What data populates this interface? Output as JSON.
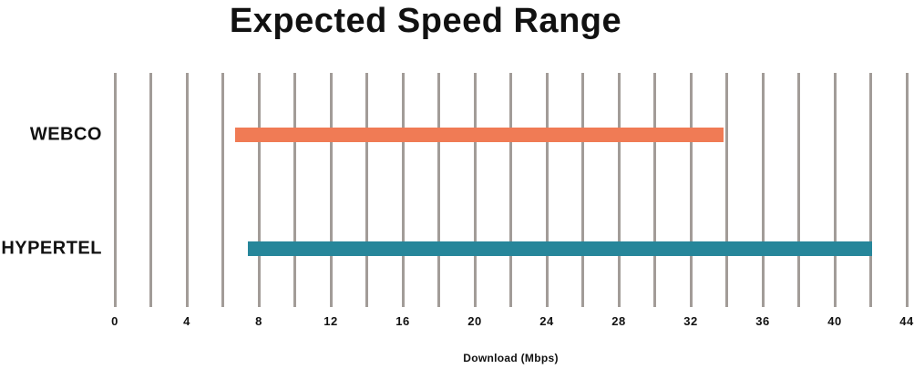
{
  "chart": {
    "title": "Expected Speed Range",
    "xlabel": "Download (Mbps)"
  },
  "chart_data": {
    "type": "bar",
    "subtype": "horizontal-range",
    "title": "Expected Speed Range",
    "xlabel": "Download (Mbps)",
    "ylabel": "",
    "categories": [
      "WEBCO",
      "HYPERTEL"
    ],
    "series": [
      {
        "name": "WEBCO",
        "range_min": 6.7,
        "range_max": 33.8,
        "color": "#f07b55"
      },
      {
        "name": "HYPERTEL",
        "range_min": 7.4,
        "range_max": 42.1,
        "color": "#26869a"
      }
    ],
    "xlim": [
      0,
      44
    ],
    "xticks": [
      0,
      4,
      8,
      12,
      16,
      20,
      24,
      28,
      32,
      36,
      40,
      44
    ],
    "gridline_step": 2,
    "grid": true,
    "legend": "none",
    "colors": {
      "gridline": "#a29c98",
      "text": "#111111",
      "background": "#ffffff",
      "webco_bar": "#f07b55",
      "hypertel_bar": "#26869a"
    }
  }
}
